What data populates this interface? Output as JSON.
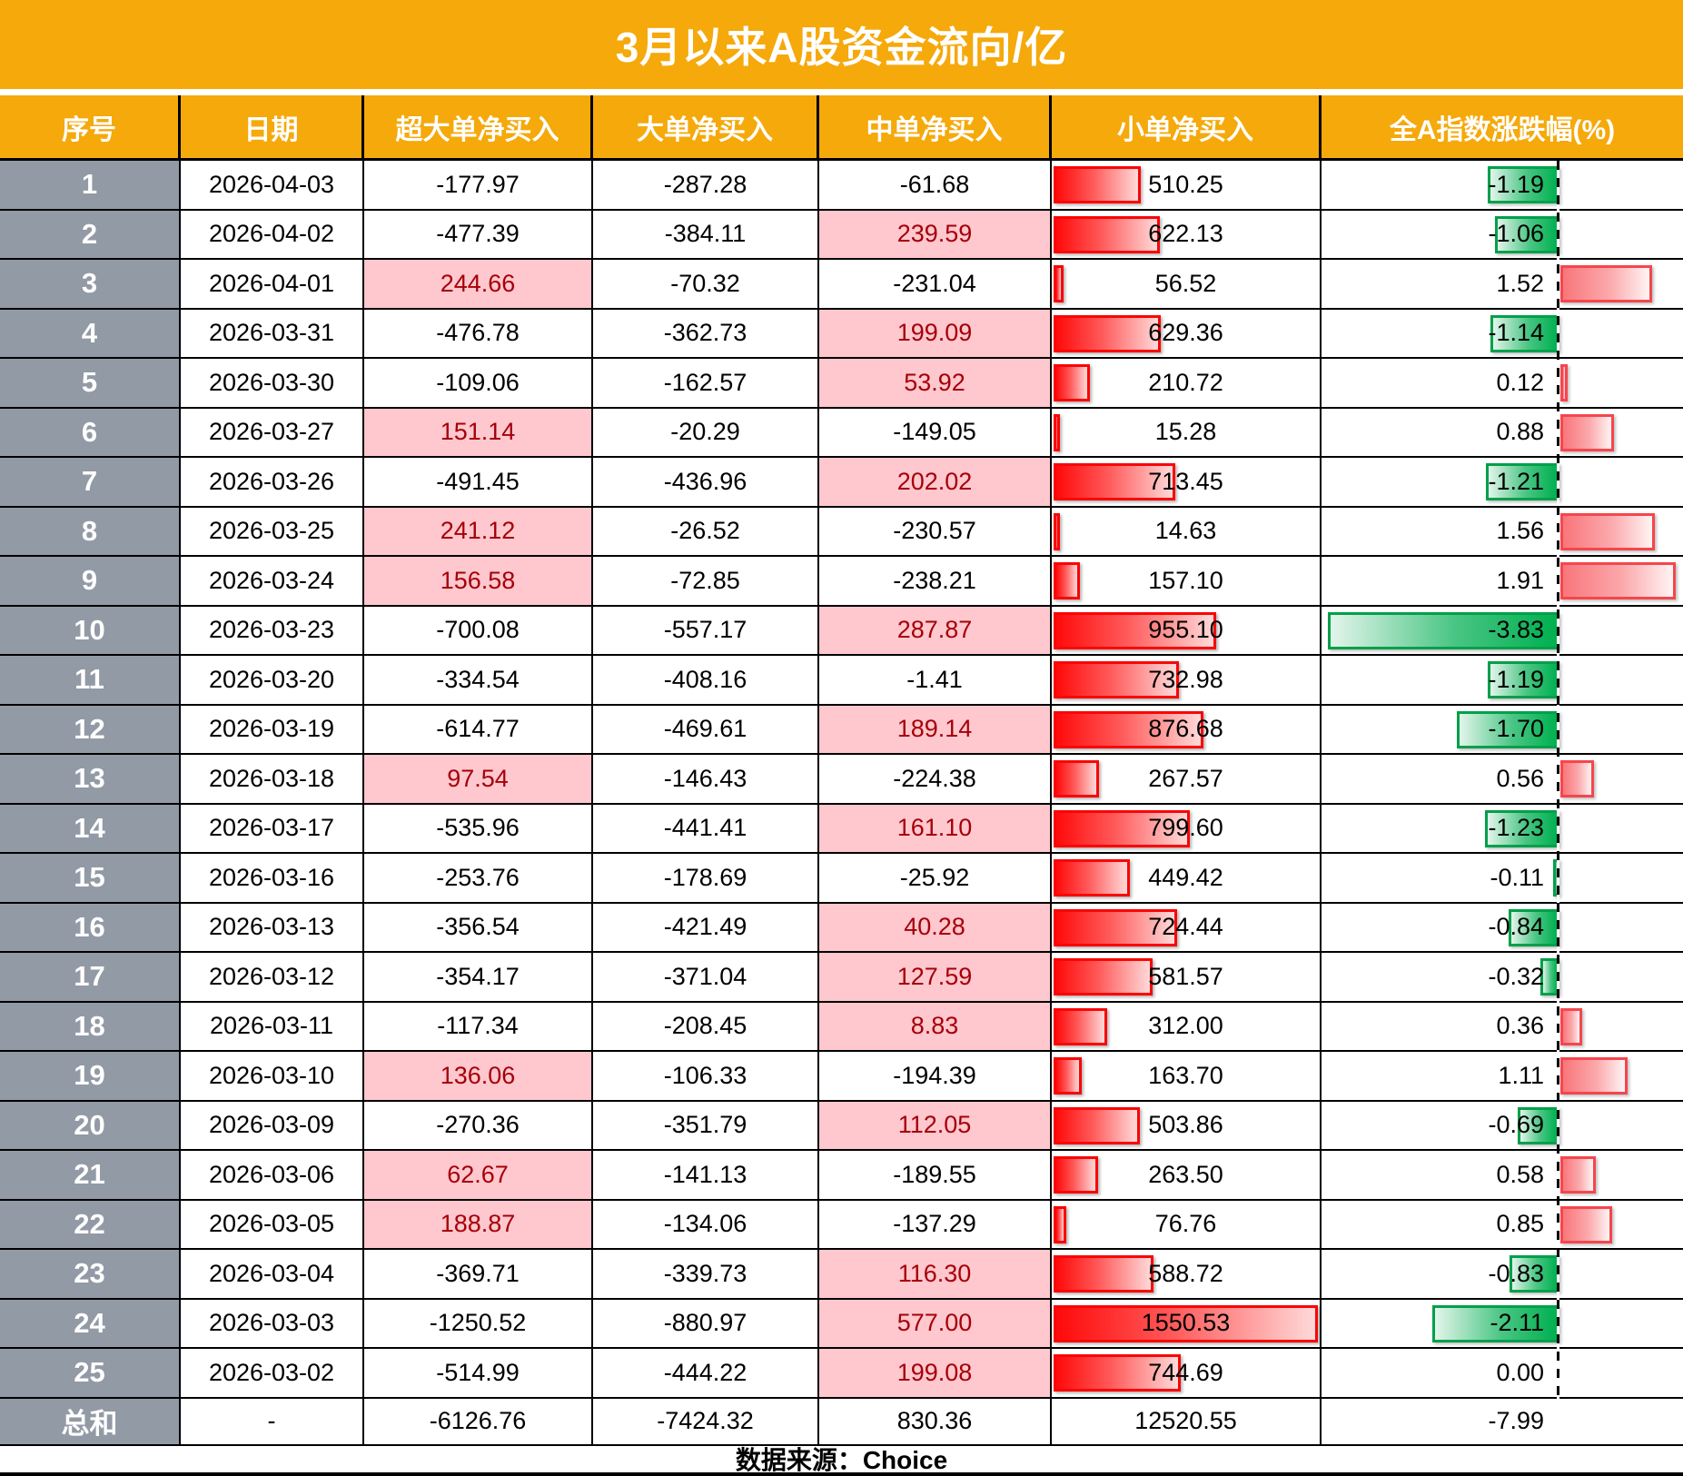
{
  "title": "3月以来A股资金流向/亿",
  "footer": {
    "source": "数据来源：Choice"
  },
  "columns": [
    "序号",
    "日期",
    "超大单净买入",
    "大单净买入",
    "中单净买入",
    "小单净买入",
    "全A指数涨跌幅(%)"
  ],
  "colors": {
    "header_bg": "#F5A90B",
    "index_column_bg": "#929AA5",
    "positive_cell_bg": "#FFC7CE",
    "positive_cell_text": "#A50008",
    "small_bar_red": "#FF0A0A",
    "pct_bar_green": "#00B050",
    "pct_bar_red_border": "#F5464D",
    "grid_border": "#000000"
  },
  "chart_data": {
    "type": "table",
    "title": "3月以来A股资金流向/亿",
    "unit": "亿",
    "columns": [
      "序号",
      "日期",
      "超大单净买入",
      "大单净买入",
      "中单净买入",
      "小单净买入",
      "全A指数涨跌幅(%)"
    ],
    "rows": [
      {
        "idx": "1",
        "date": "2026-04-03",
        "xl": "-177.97",
        "lg": "-287.28",
        "md": "-61.68",
        "sm": "510.25",
        "pct": "-1.19"
      },
      {
        "idx": "2",
        "date": "2026-04-02",
        "xl": "-477.39",
        "lg": "-384.11",
        "md": "239.59",
        "sm": "622.13",
        "pct": "-1.06"
      },
      {
        "idx": "3",
        "date": "2026-04-01",
        "xl": "244.66",
        "lg": "-70.32",
        "md": "-231.04",
        "sm": "56.52",
        "pct": "1.52"
      },
      {
        "idx": "4",
        "date": "2026-03-31",
        "xl": "-476.78",
        "lg": "-362.73",
        "md": "199.09",
        "sm": "629.36",
        "pct": "-1.14"
      },
      {
        "idx": "5",
        "date": "2026-03-30",
        "xl": "-109.06",
        "lg": "-162.57",
        "md": "53.92",
        "sm": "210.72",
        "pct": "0.12"
      },
      {
        "idx": "6",
        "date": "2026-03-27",
        "xl": "151.14",
        "lg": "-20.29",
        "md": "-149.05",
        "sm": "15.28",
        "pct": "0.88"
      },
      {
        "idx": "7",
        "date": "2026-03-26",
        "xl": "-491.45",
        "lg": "-436.96",
        "md": "202.02",
        "sm": "713.45",
        "pct": "-1.21"
      },
      {
        "idx": "8",
        "date": "2026-03-25",
        "xl": "241.12",
        "lg": "-26.52",
        "md": "-230.57",
        "sm": "14.63",
        "pct": "1.56"
      },
      {
        "idx": "9",
        "date": "2026-03-24",
        "xl": "156.58",
        "lg": "-72.85",
        "md": "-238.21",
        "sm": "157.10",
        "pct": "1.91"
      },
      {
        "idx": "10",
        "date": "2026-03-23",
        "xl": "-700.08",
        "lg": "-557.17",
        "md": "287.87",
        "sm": "955.10",
        "pct": "-3.83"
      },
      {
        "idx": "11",
        "date": "2026-03-20",
        "xl": "-334.54",
        "lg": "-408.16",
        "md": "-1.41",
        "sm": "732.98",
        "pct": "-1.19"
      },
      {
        "idx": "12",
        "date": "2026-03-19",
        "xl": "-614.77",
        "lg": "-469.61",
        "md": "189.14",
        "sm": "876.68",
        "pct": "-1.70"
      },
      {
        "idx": "13",
        "date": "2026-03-18",
        "xl": "97.54",
        "lg": "-146.43",
        "md": "-224.38",
        "sm": "267.57",
        "pct": "0.56"
      },
      {
        "idx": "14",
        "date": "2026-03-17",
        "xl": "-535.96",
        "lg": "-441.41",
        "md": "161.10",
        "sm": "799.60",
        "pct": "-1.23"
      },
      {
        "idx": "15",
        "date": "2026-03-16",
        "xl": "-253.76",
        "lg": "-178.69",
        "md": "-25.92",
        "sm": "449.42",
        "pct": "-0.11"
      },
      {
        "idx": "16",
        "date": "2026-03-13",
        "xl": "-356.54",
        "lg": "-421.49",
        "md": "40.28",
        "sm": "724.44",
        "pct": "-0.84"
      },
      {
        "idx": "17",
        "date": "2026-03-12",
        "xl": "-354.17",
        "lg": "-371.04",
        "md": "127.59",
        "sm": "581.57",
        "pct": "-0.32"
      },
      {
        "idx": "18",
        "date": "2026-03-11",
        "xl": "-117.34",
        "lg": "-208.45",
        "md": "8.83",
        "sm": "312.00",
        "pct": "0.36"
      },
      {
        "idx": "19",
        "date": "2026-03-10",
        "xl": "136.06",
        "lg": "-106.33",
        "md": "-194.39",
        "sm": "163.70",
        "pct": "1.11"
      },
      {
        "idx": "20",
        "date": "2026-03-09",
        "xl": "-270.36",
        "lg": "-351.79",
        "md": "112.05",
        "sm": "503.86",
        "pct": "-0.69"
      },
      {
        "idx": "21",
        "date": "2026-03-06",
        "xl": "62.67",
        "lg": "-141.13",
        "md": "-189.55",
        "sm": "263.50",
        "pct": "0.58"
      },
      {
        "idx": "22",
        "date": "2026-03-05",
        "xl": "188.87",
        "lg": "-134.06",
        "md": "-137.29",
        "sm": "76.76",
        "pct": "0.85"
      },
      {
        "idx": "23",
        "date": "2026-03-04",
        "xl": "-369.71",
        "lg": "-339.73",
        "md": "116.30",
        "sm": "588.72",
        "pct": "-0.83"
      },
      {
        "idx": "24",
        "date": "2026-03-03",
        "xl": "-1250.52",
        "lg": "-880.97",
        "md": "577.00",
        "sm": "1550.53",
        "pct": "-2.11"
      },
      {
        "idx": "25",
        "date": "2026-03-02",
        "xl": "-514.99",
        "lg": "-444.22",
        "md": "199.08",
        "sm": "744.69",
        "pct": "0.00"
      }
    ],
    "totals": {
      "idx": "总和",
      "date": "-",
      "xl": "-6126.76",
      "lg": "-7424.32",
      "md": "830.36",
      "sm": "12520.55",
      "pct": "-7.99"
    }
  }
}
